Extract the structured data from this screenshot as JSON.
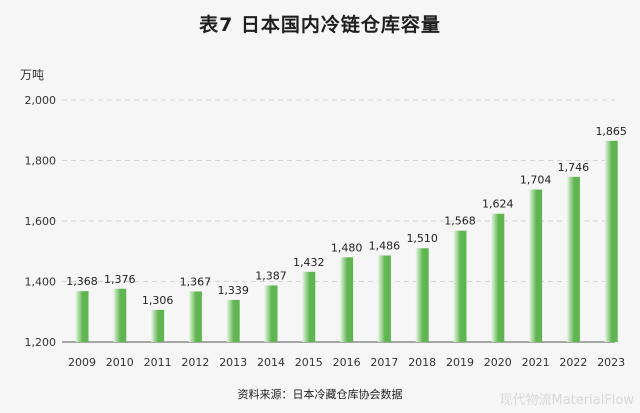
{
  "title": "表7  日本国内冷链仓库容量",
  "source": "资料来源：日本冷藏仓库协会数据",
  "watermark": "现代物流MaterialFlow",
  "chart_data": {
    "type": "bar",
    "title": "表7  日本国内冷链仓库容量",
    "ylabel": "万吨",
    "xlabel": "",
    "categories": [
      "2009",
      "2010",
      "2011",
      "2012",
      "2013",
      "2014",
      "2015",
      "2016",
      "2017",
      "2018",
      "2019",
      "2020",
      "2021",
      "2022",
      "2023"
    ],
    "values": [
      1368,
      1376,
      1306,
      1367,
      1339,
      1387,
      1432,
      1480,
      1486,
      1510,
      1568,
      1624,
      1704,
      1746,
      1865
    ],
    "value_labels": [
      "1,368",
      "1,376",
      "1,306",
      "1,367",
      "1,339",
      "1,387",
      "1,432",
      "1,480",
      "1,486",
      "1,510",
      "1,568",
      "1,624",
      "1,704",
      "1,746",
      "1,865"
    ],
    "ylim": [
      1200,
      2000
    ],
    "yticks": [
      1200,
      1400,
      1600,
      1800,
      2000
    ],
    "ytick_labels": [
      "1,200",
      "1,400",
      "1,600",
      "1,800",
      "2,000"
    ],
    "grid": true,
    "bar_color_light": "#e9f6e6",
    "bar_color_dark": "#5fb54f"
  }
}
